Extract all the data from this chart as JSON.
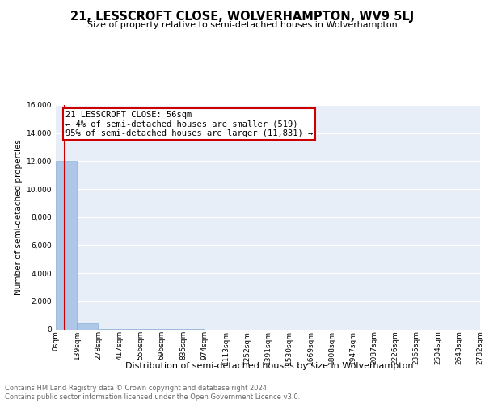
{
  "title": "21, LESSCROFT CLOSE, WOLVERHAMPTON, WV9 5LJ",
  "subtitle": "Size of property relative to semi-detached houses in Wolverhampton",
  "xlabel_dist": "Distribution of semi-detached houses by size in Wolverhampton",
  "ylabel": "Number of semi-detached properties",
  "footer_line1": "Contains HM Land Registry data © Crown copyright and database right 2024.",
  "footer_line2": "Contains public sector information licensed under the Open Government Licence v3.0.",
  "annotation_line1": "21 LESSCROFT CLOSE: 56sqm",
  "annotation_line2": "← 4% of semi-detached houses are smaller (519)",
  "annotation_line3": "95% of semi-detached houses are larger (11,831) →",
  "bin_width": 139,
  "bar_values": [
    12000,
    450,
    8,
    4,
    2,
    1,
    1,
    0,
    0,
    0,
    0,
    0,
    0,
    0,
    0,
    0,
    0,
    0,
    0,
    0
  ],
  "bar_color": "#aec6e8",
  "bar_edge_color": "#7ba7cc",
  "bg_color": "#e8eef7",
  "grid_color": "#ffffff",
  "ylim": [
    0,
    16000
  ],
  "yticks": [
    0,
    2000,
    4000,
    6000,
    8000,
    10000,
    12000,
    14000,
    16000
  ],
  "x_labels": [
    "0sqm",
    "139sqm",
    "278sqm",
    "417sqm",
    "556sqm",
    "696sqm",
    "835sqm",
    "974sqm",
    "1113sqm",
    "1252sqm",
    "1391sqm",
    "1530sqm",
    "1669sqm",
    "1808sqm",
    "1947sqm",
    "2087sqm",
    "2226sqm",
    "2365sqm",
    "2504sqm",
    "2643sqm",
    "2782sqm"
  ],
  "red_box_color": "#cc0000",
  "red_line_x": 56,
  "title_fontsize": 10.5,
  "subtitle_fontsize": 8,
  "ylabel_fontsize": 7.5,
  "tick_fontsize": 6.5,
  "annot_fontsize": 7.5,
  "footer_fontsize": 6,
  "xlabel_fontsize": 8
}
